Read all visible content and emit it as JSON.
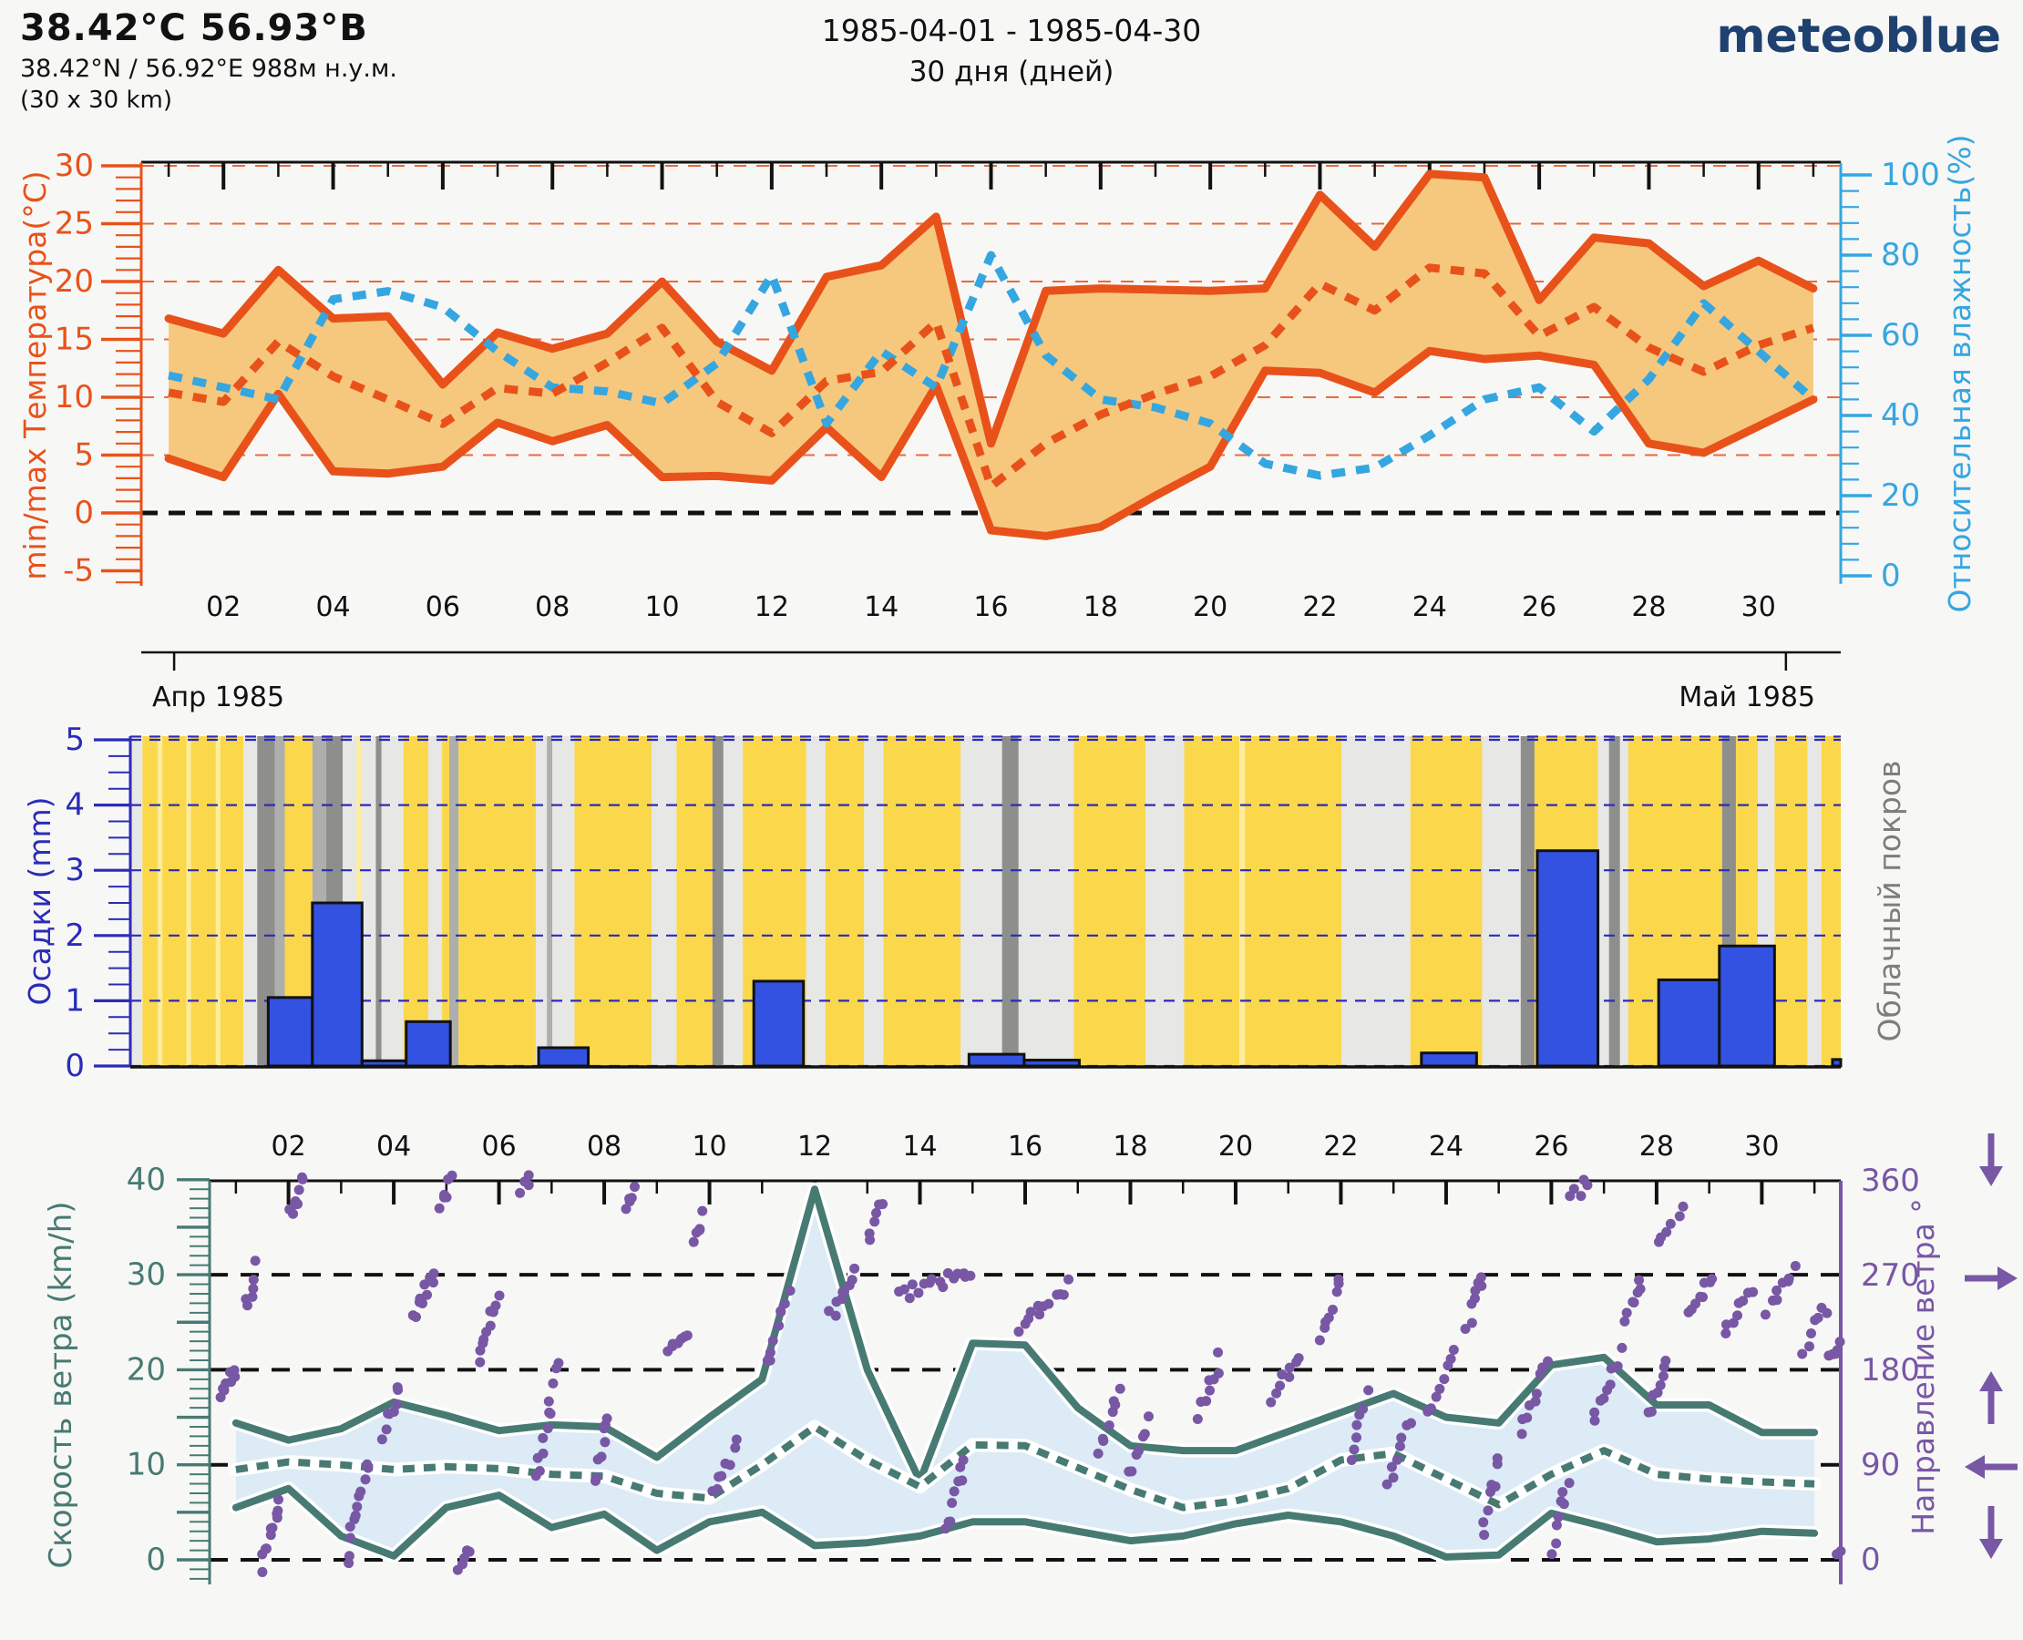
{
  "header": {
    "location_title": "38.42°C 56.93°В",
    "coords_line": "38.42°N / 56.92°E   988м н.у.м.",
    "area_line": "(30 x 30 km)",
    "date_range": "1985-04-01 - 1985-04-30",
    "duration": "30 дня (дней)",
    "logo_text": "meteoblue"
  },
  "colors": {
    "temp_line": "#e8521a",
    "temp_band": "#f6c87e",
    "humidity": "#35a6e0",
    "precip_bar": "#3352e1",
    "precip_axis": "#2b2bb8",
    "wind_teal": "#477a72",
    "wind_band": "#dcebf5",
    "direction_purple": "#7857a5",
    "stripe_yellow": "#fbd84b",
    "stripe_pale": "#fcec9c",
    "stripe_lightgray": "#e7e7e5",
    "stripe_midgray": "#aeaeac",
    "stripe_darkgray": "#8e8e8c",
    "logo_blue": "#1f4170"
  },
  "chart_data": [
    {
      "id": "temperature",
      "type": "line",
      "ylabel_left": "min/max Температура(°C)",
      "ylabel_right": "Относительная влажность(%)",
      "yticks_left": [
        30,
        25,
        20,
        15,
        10,
        5,
        0,
        -5
      ],
      "yticks_right": [
        100,
        80,
        60,
        40,
        20,
        0
      ],
      "ylim_left": [
        -6.4,
        30.4
      ],
      "ylim_right": [
        0,
        103
      ],
      "xtick_labels": [
        "02",
        "04",
        "06",
        "08",
        "10",
        "12",
        "14",
        "16",
        "18",
        "20",
        "22",
        "24",
        "26",
        "28",
        "30"
      ],
      "month_left": "Апр 1985",
      "month_right": "Май 1985",
      "x_days": [
        1,
        2,
        3,
        4,
        5,
        6,
        7,
        8,
        9,
        10,
        11,
        12,
        13,
        14,
        15,
        16,
        17,
        18,
        19,
        20,
        21,
        22,
        23,
        24,
        25,
        26,
        27,
        28,
        29,
        30,
        31
      ],
      "series": [
        {
          "name": "max_temp_c",
          "values": [
            16.8,
            15.5,
            21.0,
            16.8,
            17.0,
            11.1,
            15.6,
            14.2,
            15.5,
            20.0,
            14.8,
            12.3,
            20.4,
            21.4,
            25.6,
            6.0,
            19.2,
            19.4,
            19.3,
            19.2,
            19.4,
            27.5,
            23.0,
            29.3,
            29.0,
            18.4,
            23.8,
            23.3,
            19.6,
            21.8,
            19.4
          ]
        },
        {
          "name": "min_temp_c",
          "values": [
            4.7,
            3.1,
            10.3,
            3.6,
            3.4,
            4.0,
            7.8,
            6.2,
            7.6,
            3.1,
            3.2,
            2.8,
            7.4,
            3.1,
            11.0,
            -1.5,
            -2.0,
            -1.2,
            1.5,
            4.0,
            12.3,
            12.1,
            10.4,
            14.0,
            13.3,
            13.6,
            12.8,
            6.0,
            5.2,
            7.5,
            9.8
          ]
        },
        {
          "name": "mean_temp_c",
          "values": [
            10.4,
            9.6,
            14.8,
            11.8,
            9.8,
            7.7,
            10.8,
            10.3,
            13.0,
            16.0,
            9.6,
            6.9,
            11.4,
            12.2,
            16.5,
            2.3,
            6.0,
            8.5,
            10.3,
            11.8,
            14.5,
            19.8,
            17.5,
            21.2,
            20.7,
            15.3,
            17.8,
            14.3,
            12.2,
            14.5,
            16.0
          ]
        },
        {
          "name": "humidity_pct",
          "values": [
            50,
            47,
            44,
            69,
            71,
            67,
            56,
            47,
            46,
            43,
            53,
            75,
            38,
            56,
            47,
            80,
            55,
            44,
            42,
            38,
            28,
            25,
            27,
            35,
            44,
            47,
            36,
            49,
            68,
            56,
            44
          ]
        }
      ]
    },
    {
      "id": "precipitation",
      "type": "bar",
      "ylabel_left": "Осадки (mm)",
      "ylabel_right": "Облачный покров",
      "yticks_left": [
        5,
        4,
        3,
        2,
        1,
        0
      ],
      "ylim": [
        0,
        5.05
      ],
      "bars_day_span_mm": [
        [
          2.5,
          3.3,
          1.05
        ],
        [
          3.3,
          4.2,
          2.5
        ],
        [
          4.2,
          5.0,
          0.08
        ],
        [
          5.0,
          5.8,
          0.68
        ],
        [
          7.4,
          8.3,
          0.28
        ],
        [
          11.3,
          12.2,
          1.3
        ],
        [
          15.2,
          16.2,
          0.18
        ],
        [
          16.2,
          17.2,
          0.09
        ],
        [
          23.4,
          24.4,
          0.2
        ],
        [
          25.5,
          26.6,
          3.3
        ],
        [
          27.7,
          28.8,
          1.32
        ],
        [
          28.8,
          29.8,
          1.84
        ],
        [
          30.85,
          31.0,
          0.1
        ]
      ],
      "cloud_stripes": [
        [
          0,
          0.22,
          "lg"
        ],
        [
          0.22,
          0.5,
          "y"
        ],
        [
          0.5,
          0.58,
          "py"
        ],
        [
          0.58,
          1.02,
          "y"
        ],
        [
          1.02,
          1.1,
          "py"
        ],
        [
          1.1,
          1.55,
          "y"
        ],
        [
          1.55,
          1.63,
          "py"
        ],
        [
          1.63,
          2.05,
          "y"
        ],
        [
          2.05,
          2.3,
          "lg"
        ],
        [
          2.3,
          2.62,
          "dg"
        ],
        [
          2.62,
          2.8,
          "mg"
        ],
        [
          2.8,
          3.3,
          "y"
        ],
        [
          3.3,
          3.55,
          "mg"
        ],
        [
          3.55,
          3.85,
          "dg"
        ],
        [
          3.85,
          4.1,
          "lg"
        ],
        [
          4.1,
          4.2,
          "py"
        ],
        [
          4.2,
          4.45,
          "lg"
        ],
        [
          4.45,
          4.55,
          "dg"
        ],
        [
          4.55,
          4.95,
          "lg"
        ],
        [
          4.95,
          5.4,
          "y"
        ],
        [
          5.4,
          5.65,
          "lg"
        ],
        [
          5.65,
          5.78,
          "y"
        ],
        [
          5.78,
          5.95,
          "mg"
        ],
        [
          5.95,
          7.35,
          "y"
        ],
        [
          7.35,
          7.55,
          "lg"
        ],
        [
          7.55,
          7.65,
          "mg"
        ],
        [
          7.65,
          8.05,
          "lg"
        ],
        [
          8.05,
          9.45,
          "y"
        ],
        [
          9.45,
          9.9,
          "lg"
        ],
        [
          9.9,
          10.55,
          "y"
        ],
        [
          10.55,
          10.75,
          "dg"
        ],
        [
          10.75,
          11.1,
          "lg"
        ],
        [
          11.1,
          12.25,
          "y"
        ],
        [
          12.25,
          12.6,
          "lg"
        ],
        [
          12.6,
          13.3,
          "y"
        ],
        [
          13.3,
          13.65,
          "lg"
        ],
        [
          13.65,
          15.05,
          "y"
        ],
        [
          15.05,
          15.8,
          "lg"
        ],
        [
          15.8,
          16.1,
          "dg"
        ],
        [
          16.1,
          17.1,
          "lg"
        ],
        [
          17.1,
          18.4,
          "y"
        ],
        [
          18.4,
          19.1,
          "lg"
        ],
        [
          19.1,
          20.1,
          "y"
        ],
        [
          20.1,
          20.2,
          "py"
        ],
        [
          20.2,
          21.95,
          "y"
        ],
        [
          21.95,
          23.2,
          "lg"
        ],
        [
          23.2,
          24.5,
          "y"
        ],
        [
          24.5,
          25.2,
          "lg"
        ],
        [
          25.2,
          25.45,
          "dg"
        ],
        [
          25.45,
          26.6,
          "y"
        ],
        [
          26.6,
          26.8,
          "lg"
        ],
        [
          26.8,
          27.0,
          "dg"
        ],
        [
          27.0,
          27.15,
          "lg"
        ],
        [
          27.15,
          28.85,
          "y"
        ],
        [
          28.85,
          29.1,
          "dg"
        ],
        [
          29.1,
          29.5,
          "y"
        ],
        [
          29.5,
          29.8,
          "lg"
        ],
        [
          29.8,
          30.4,
          "y"
        ],
        [
          30.4,
          30.65,
          "lg"
        ],
        [
          30.65,
          31.0,
          "y"
        ]
      ]
    },
    {
      "id": "wind",
      "type": "line",
      "ylabel_left": "Скорость ветра (km/h)",
      "ylabel_right": "Направление ветра °",
      "yticks_left": [
        40,
        30,
        20,
        10,
        0
      ],
      "yticks_right": [
        360,
        270,
        180,
        90,
        0
      ],
      "ylim_left": [
        -2.5,
        40
      ],
      "ylim_right": [
        0,
        360
      ],
      "xtick_labels": [
        "02",
        "04",
        "06",
        "08",
        "10",
        "12",
        "14",
        "16",
        "18",
        "20",
        "22",
        "24",
        "26",
        "28",
        "30"
      ],
      "x_days": [
        1,
        2,
        3,
        4,
        5,
        6,
        7,
        8,
        9,
        10,
        11,
        12,
        13,
        14,
        15,
        16,
        17,
        18,
        19,
        20,
        21,
        22,
        23,
        24,
        25,
        26,
        27,
        28,
        29,
        30,
        31
      ],
      "series": [
        {
          "name": "max_wind_kmh",
          "values": [
            14.4,
            12.6,
            13.8,
            16.6,
            15.2,
            13.6,
            14.2,
            14.0,
            10.8,
            15.0,
            19.0,
            39.0,
            20.0,
            8.3,
            22.8,
            22.6,
            16.0,
            12.0,
            11.5,
            11.5,
            13.5,
            15.5,
            17.5,
            15.0,
            14.4,
            20.5,
            21.3,
            16.3,
            16.3,
            13.4,
            13.4
          ]
        },
        {
          "name": "mean_wind_kmh",
          "values": [
            9.5,
            10.3,
            10.0,
            9.5,
            9.8,
            9.6,
            9.0,
            8.8,
            7.0,
            6.5,
            10.0,
            14.0,
            10.5,
            7.7,
            12.1,
            12.0,
            9.7,
            7.4,
            5.5,
            6.2,
            7.5,
            10.5,
            11.2,
            8.5,
            5.8,
            9.0,
            11.5,
            9.0,
            8.5,
            8.2,
            8.0
          ]
        },
        {
          "name": "min_wind_kmh",
          "values": [
            5.5,
            7.5,
            2.5,
            0.4,
            5.5,
            6.8,
            3.4,
            4.8,
            1.0,
            4.0,
            5.0,
            1.5,
            1.8,
            2.5,
            4.0,
            4.0,
            3.0,
            2.0,
            2.5,
            3.8,
            4.7,
            4.0,
            2.5,
            0.3,
            0.5,
            4.9,
            3.5,
            1.9,
            2.2,
            3.0,
            2.8
          ]
        }
      ],
      "direction_runs_day_deg": [
        [
          0.2,
          0.5,
          155,
          180,
          8
        ],
        [
          0.7,
          0.9,
          240,
          280,
          6
        ],
        [
          1.0,
          1.35,
          -5,
          55,
          12
        ],
        [
          1.5,
          1.8,
          330,
          360,
          8
        ],
        [
          2.6,
          3.0,
          0,
          90,
          12
        ],
        [
          3.3,
          3.6,
          120,
          165,
          8
        ],
        [
          3.9,
          4.25,
          230,
          272,
          10
        ],
        [
          4.4,
          4.6,
          340,
          358,
          6
        ],
        [
          4.75,
          4.95,
          -5,
          10,
          5
        ],
        [
          5.1,
          5.5,
          190,
          255,
          10
        ],
        [
          5.9,
          6.1,
          350,
          360,
          4
        ],
        [
          6.2,
          6.6,
          75,
          185,
          12
        ],
        [
          7.3,
          7.6,
          70,
          140,
          8
        ],
        [
          7.9,
          8.1,
          330,
          355,
          6
        ],
        [
          8.7,
          9.1,
          195,
          218,
          7
        ],
        [
          9.2,
          9.4,
          305,
          325,
          5
        ],
        [
          9.6,
          10.0,
          60,
          110,
          8
        ],
        [
          10.6,
          11.0,
          185,
          255,
          9
        ],
        [
          11.8,
          12.25,
          230,
          270,
          9
        ],
        [
          12.5,
          12.8,
          300,
          340,
          6
        ],
        [
          13.1,
          14.5,
          250,
          275,
          16
        ],
        [
          14.0,
          14.35,
          25,
          95,
          9
        ],
        [
          15.4,
          16.3,
          220,
          262,
          12
        ],
        [
          16.9,
          17.3,
          105,
          160,
          8
        ],
        [
          17.5,
          17.8,
          80,
          135,
          7
        ],
        [
          18.8,
          19.2,
          140,
          190,
          8
        ],
        [
          20.2,
          20.7,
          150,
          195,
          8
        ],
        [
          21.1,
          21.5,
          215,
          265,
          8
        ],
        [
          21.7,
          22.0,
          95,
          155,
          7
        ],
        [
          22.4,
          22.8,
          70,
          130,
          8
        ],
        [
          23.2,
          23.6,
          135,
          195,
          8
        ],
        [
          23.9,
          24.2,
          225,
          270,
          8
        ],
        [
          24.2,
          24.5,
          30,
          95,
          8
        ],
        [
          24.9,
          25.4,
          120,
          190,
          9
        ],
        [
          25.5,
          25.8,
          10,
          80,
          8
        ],
        [
          25.9,
          26.2,
          345,
          360,
          5
        ],
        [
          26.3,
          26.8,
          130,
          195,
          9
        ],
        [
          26.9,
          27.2,
          225,
          268,
          7
        ],
        [
          27.3,
          27.7,
          140,
          192,
          8
        ],
        [
          27.5,
          28.0,
          300,
          330,
          6
        ],
        [
          28.1,
          28.6,
          230,
          272,
          8
        ],
        [
          28.8,
          29.3,
          218,
          260,
          8
        ],
        [
          29.6,
          30.1,
          235,
          278,
          8
        ],
        [
          30.3,
          30.7,
          202,
          240,
          7
        ],
        [
          30.8,
          31.0,
          188,
          205,
          5
        ],
        [
          30.9,
          31.0,
          0,
          8,
          3
        ]
      ],
      "arrow_glyphs": [
        "down",
        "right",
        "up",
        "left",
        "down"
      ]
    }
  ]
}
